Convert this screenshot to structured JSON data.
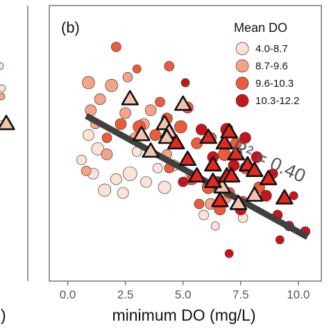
{
  "chart_data": {
    "type": "scatter",
    "panel_label": "(b)",
    "left_panel_partial_label": ")",
    "xlabel": "minimum DO (mg/L)",
    "ylabel": "",
    "xlim": [
      -0.8,
      11.0
    ],
    "ylim": [
      0,
      1
    ],
    "x_ticks": [
      0.0,
      2.5,
      5.0,
      7.5,
      10.0
    ],
    "x_tick_labels": [
      "0.0",
      "2.5",
      "5.0",
      "7.5",
      "10.0"
    ],
    "grid": false,
    "legend": {
      "title": "Mean DO",
      "placement": "top-right",
      "entries": [
        {
          "label": "4.0-8.7",
          "color": "#FDE3D7"
        },
        {
          "label": "8.7-9.6",
          "color": "#F6A488"
        },
        {
          "label": "9.6-10.3",
          "color": "#EE5B3A"
        },
        {
          "label": "10.3-12.2",
          "color": "#C8141C"
        }
      ]
    },
    "annotation": "R² = 0.40",
    "fit_line": {
      "x": [
        0.8,
        10.4
      ],
      "y": [
        0.6,
        0.16
      ],
      "color": "#404040"
    },
    "series": [
      {
        "name": "4.0-8.7",
        "marker": "circle",
        "color": "#FDE3D7",
        "points": [
          {
            "x": 0.9,
            "y": 0.53,
            "s": 8
          },
          {
            "x": 0.6,
            "y": 0.44,
            "s": 7
          },
          {
            "x": 1.1,
            "y": 0.39,
            "s": 8
          },
          {
            "x": 1.6,
            "y": 0.33,
            "s": 9
          },
          {
            "x": 2.1,
            "y": 0.37,
            "s": 8
          },
          {
            "x": 2.7,
            "y": 0.39,
            "s": 10
          },
          {
            "x": 3.4,
            "y": 0.36,
            "s": 8
          },
          {
            "x": 4.2,
            "y": 0.34,
            "s": 9
          },
          {
            "x": 3.0,
            "y": 0.47,
            "s": 7
          },
          {
            "x": 2.4,
            "y": 0.32,
            "s": 8
          },
          {
            "x": 3.9,
            "y": 0.41,
            "s": 7
          },
          {
            "x": 5.3,
            "y": 0.37,
            "s": 8
          },
          {
            "x": 5.9,
            "y": 0.24,
            "s": 7
          },
          {
            "x": 6.4,
            "y": 0.2,
            "s": 6
          },
          {
            "x": 7.6,
            "y": 0.23,
            "s": 7
          },
          {
            "x": 1.3,
            "y": 0.48,
            "s": 9
          },
          {
            "x": 4.6,
            "y": 0.42,
            "s": 8
          }
        ]
      },
      {
        "name": "8.7-9.6",
        "marker": "circle",
        "color": "#F6A488",
        "points": [
          {
            "x": 0.9,
            "y": 0.72,
            "s": 9
          },
          {
            "x": 1.4,
            "y": 0.66,
            "s": 8
          },
          {
            "x": 1.9,
            "y": 0.71,
            "s": 9
          },
          {
            "x": 1.2,
            "y": 0.57,
            "s": 7
          },
          {
            "x": 2.5,
            "y": 0.61,
            "s": 8
          },
          {
            "x": 1.7,
            "y": 0.46,
            "s": 8
          },
          {
            "x": 2.9,
            "y": 0.52,
            "s": 7
          },
          {
            "x": 0.8,
            "y": 0.4,
            "s": 7
          },
          {
            "x": 3.6,
            "y": 0.62,
            "s": 8
          },
          {
            "x": 4.3,
            "y": 0.46,
            "s": 7
          },
          {
            "x": 2.6,
            "y": 0.74,
            "s": 7
          },
          {
            "x": 5.6,
            "y": 0.38,
            "s": 7
          },
          {
            "x": 6.2,
            "y": 0.28,
            "s": 8
          },
          {
            "x": 3.3,
            "y": 0.57,
            "s": 8
          },
          {
            "x": 6.9,
            "y": 0.3,
            "s": 6
          },
          {
            "x": 1.0,
            "y": 0.62,
            "s": 8
          }
        ]
      },
      {
        "name": "9.6-10.3",
        "marker": "circle",
        "color": "#EE5B3A",
        "points": [
          {
            "x": 2.3,
            "y": 0.57,
            "s": 8
          },
          {
            "x": 3.1,
            "y": 0.56,
            "s": 9
          },
          {
            "x": 3.8,
            "y": 0.53,
            "s": 8
          },
          {
            "x": 4.3,
            "y": 0.59,
            "s": 8
          },
          {
            "x": 4.9,
            "y": 0.56,
            "s": 9
          },
          {
            "x": 5.6,
            "y": 0.5,
            "s": 8
          },
          {
            "x": 6.2,
            "y": 0.52,
            "s": 8
          },
          {
            "x": 6.8,
            "y": 0.46,
            "s": 9
          },
          {
            "x": 7.3,
            "y": 0.5,
            "s": 8
          },
          {
            "x": 5.4,
            "y": 0.37,
            "s": 8
          },
          {
            "x": 6.1,
            "y": 0.34,
            "s": 9
          },
          {
            "x": 7.0,
            "y": 0.32,
            "s": 8
          },
          {
            "x": 4.4,
            "y": 0.41,
            "s": 7
          },
          {
            "x": 7.7,
            "y": 0.41,
            "s": 8
          },
          {
            "x": 8.3,
            "y": 0.34,
            "s": 8
          },
          {
            "x": 1.7,
            "y": 0.52,
            "s": 7
          },
          {
            "x": 2.1,
            "y": 0.85,
            "s": 7
          },
          {
            "x": 4.4,
            "y": 0.78,
            "s": 7
          },
          {
            "x": 5.2,
            "y": 0.63,
            "s": 8
          },
          {
            "x": 5.7,
            "y": 0.28,
            "s": 7
          },
          {
            "x": 6.6,
            "y": 0.26,
            "s": 8
          },
          {
            "x": 3.0,
            "y": 0.77,
            "s": 6
          },
          {
            "x": 7.6,
            "y": 0.29,
            "s": 7
          },
          {
            "x": 4.0,
            "y": 0.65,
            "s": 7
          }
        ]
      },
      {
        "name": "10.3-12.2",
        "marker": "circle",
        "color": "#C8141C",
        "points": [
          {
            "x": 5.1,
            "y": 0.72,
            "s": 6
          },
          {
            "x": 5.8,
            "y": 0.55,
            "s": 8
          },
          {
            "x": 6.3,
            "y": 0.45,
            "s": 8
          },
          {
            "x": 6.9,
            "y": 0.55,
            "s": 9
          },
          {
            "x": 7.2,
            "y": 0.42,
            "s": 8
          },
          {
            "x": 7.7,
            "y": 0.52,
            "s": 8
          },
          {
            "x": 8.2,
            "y": 0.45,
            "s": 8
          },
          {
            "x": 8.6,
            "y": 0.31,
            "s": 8
          },
          {
            "x": 9.1,
            "y": 0.24,
            "s": 7
          },
          {
            "x": 9.6,
            "y": 0.2,
            "s": 7
          },
          {
            "x": 10.3,
            "y": 0.18,
            "s": 7
          },
          {
            "x": 8.9,
            "y": 0.39,
            "s": 7
          },
          {
            "x": 7.5,
            "y": 0.26,
            "s": 8
          },
          {
            "x": 6.5,
            "y": 0.36,
            "s": 8
          },
          {
            "x": 9.8,
            "y": 0.31,
            "s": 6
          },
          {
            "x": 9.2,
            "y": 0.15,
            "s": 6
          },
          {
            "x": 7.0,
            "y": 0.1,
            "s": 6
          },
          {
            "x": 5.0,
            "y": 0.36,
            "s": 7
          }
        ]
      },
      {
        "name": "",
        "marker": "triangle",
        "color": "#F5C2AE",
        "points": [
          {
            "x": 2.7,
            "y": 0.66
          },
          {
            "x": 3.2,
            "y": 0.53
          },
          {
            "x": 4.2,
            "y": 0.57
          },
          {
            "x": 5.0,
            "y": 0.64
          },
          {
            "x": 4.4,
            "y": 0.54
          },
          {
            "x": 6.7,
            "y": 0.34
          },
          {
            "x": 7.4,
            "y": 0.28
          },
          {
            "x": 8.1,
            "y": 0.31
          },
          {
            "x": 4.3,
            "y": 0.52
          },
          {
            "x": 3.6,
            "y": 0.47
          }
        ]
      },
      {
        "name": "",
        "marker": "triangle",
        "color": "#E2281F",
        "points": [
          {
            "x": 4.7,
            "y": 0.5
          },
          {
            "x": 5.2,
            "y": 0.44
          },
          {
            "x": 6.1,
            "y": 0.52
          },
          {
            "x": 6.8,
            "y": 0.5
          },
          {
            "x": 7.0,
            "y": 0.54
          },
          {
            "x": 6.3,
            "y": 0.42
          },
          {
            "x": 7.3,
            "y": 0.46
          },
          {
            "x": 7.8,
            "y": 0.42
          },
          {
            "x": 8.1,
            "y": 0.4
          },
          {
            "x": 5.6,
            "y": 0.38
          },
          {
            "x": 6.3,
            "y": 0.36
          },
          {
            "x": 6.9,
            "y": 0.38
          },
          {
            "x": 8.7,
            "y": 0.37
          },
          {
            "x": 9.4,
            "y": 0.3
          },
          {
            "x": 6.6,
            "y": 0.29
          },
          {
            "x": 7.1,
            "y": 0.38
          }
        ]
      }
    ],
    "left_panel": {
      "points": [
        {
          "x": 0.2,
          "y": 0.78,
          "s": 5,
          "color": "#FDE3D7"
        },
        {
          "x": 0.5,
          "y": 0.7,
          "s": 5,
          "color": "#FDE3D7"
        },
        {
          "x": 0.4,
          "y": 0.67,
          "s": 5,
          "color": "#F6A488"
        },
        {
          "x": 0.3,
          "y": 0.57,
          "s": 5,
          "color": "#FDE3D7"
        }
      ],
      "triangle": {
        "x": 0.7,
        "y": 0.57,
        "color": "#F5C2AE"
      }
    }
  }
}
